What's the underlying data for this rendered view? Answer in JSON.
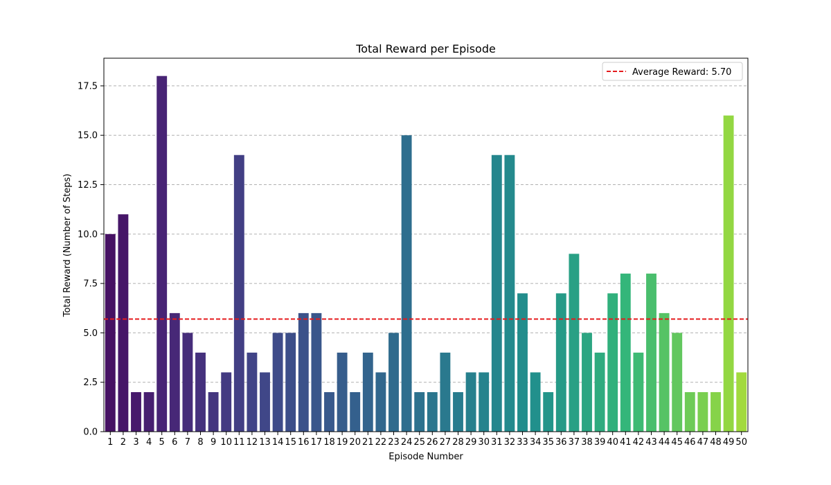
{
  "chart_data": {
    "type": "bar",
    "title": "Total Reward per Episode",
    "xlabel": "Episode Number",
    "ylabel": "Total Reward (Number of Steps)",
    "categories": [
      "1",
      "2",
      "3",
      "4",
      "5",
      "6",
      "7",
      "8",
      "9",
      "10",
      "11",
      "12",
      "13",
      "14",
      "15",
      "16",
      "17",
      "18",
      "19",
      "20",
      "21",
      "22",
      "23",
      "24",
      "25",
      "26",
      "27",
      "28",
      "29",
      "30",
      "31",
      "32",
      "33",
      "34",
      "35",
      "36",
      "37",
      "38",
      "39",
      "40",
      "41",
      "42",
      "43",
      "44",
      "45",
      "46",
      "47",
      "48",
      "49",
      "50"
    ],
    "values": [
      10,
      11,
      2,
      2,
      18,
      6,
      5,
      4,
      2,
      3,
      14,
      4,
      3,
      5,
      5,
      6,
      6,
      2,
      4,
      2,
      4,
      3,
      5,
      15,
      2,
      2,
      4,
      2,
      3,
      3,
      14,
      14,
      7,
      3,
      2,
      7,
      9,
      5,
      4,
      7,
      8,
      4,
      8,
      6,
      5,
      2,
      2,
      2,
      16,
      3
    ],
    "ylim": [
      0,
      18.9
    ],
    "yticks": [
      "0.0",
      "2.5",
      "5.0",
      "7.5",
      "10.0",
      "12.5",
      "15.0",
      "17.5"
    ],
    "ytick_values": [
      0,
      2.5,
      5,
      7.5,
      10,
      12.5,
      15,
      17.5
    ],
    "grid": "y-dashed",
    "colormap": "viridis",
    "average": {
      "value": 5.7,
      "label": "Average Reward: 5.70",
      "color": "#e41a1c",
      "style": "dashed"
    },
    "legend_position": "top-right"
  }
}
